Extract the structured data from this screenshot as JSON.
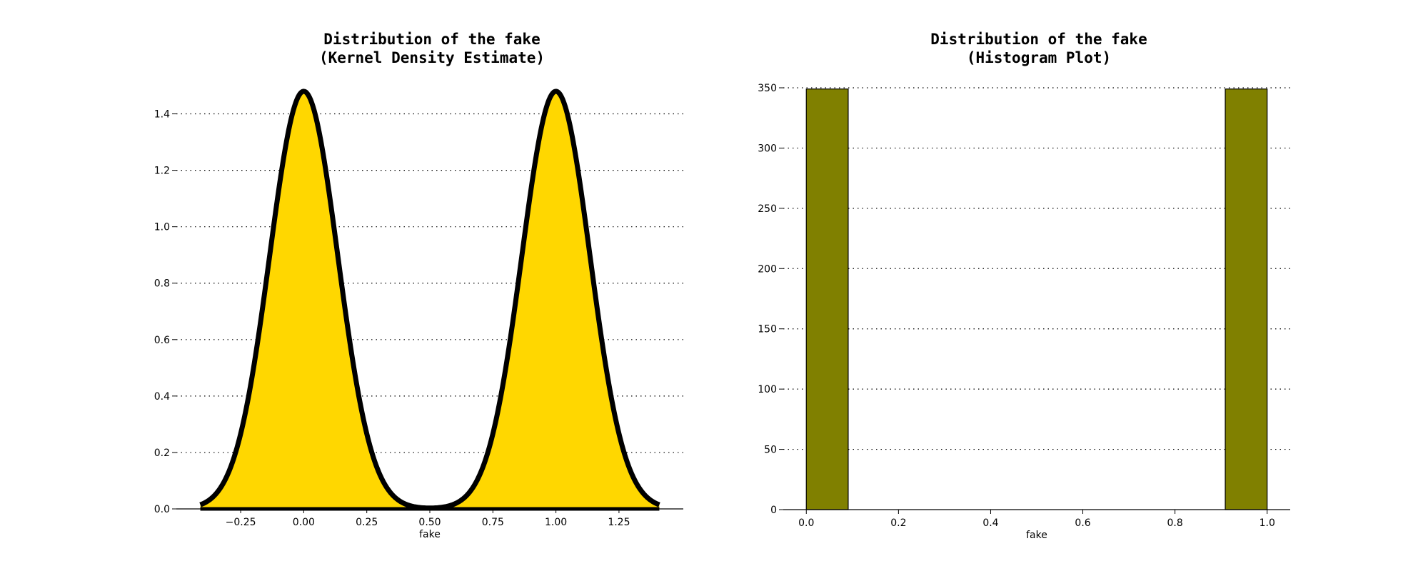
{
  "chart_data": [
    {
      "type": "area",
      "title": "Distribution of the fake",
      "subtitle": "(Kernel Density Estimate)",
      "xlabel": "fake",
      "ylabel": "",
      "xlim": [
        -0.505,
        1.505
      ],
      "ylim": [
        0,
        1.5
      ],
      "xticks": [
        -0.25,
        0.0,
        0.25,
        0.5,
        0.75,
        1.0,
        1.25
      ],
      "xtick_labels": [
        "−0.25",
        "0.00",
        "0.25",
        "0.50",
        "0.75",
        "1.00",
        "1.25"
      ],
      "yticks": [
        0.0,
        0.2,
        0.4,
        0.6,
        0.8,
        1.0,
        1.2,
        1.4
      ],
      "ytick_labels": [
        "0.0",
        "0.2",
        "0.4",
        "0.6",
        "0.8",
        "1.0",
        "1.2",
        "1.4"
      ],
      "grid": "y-dotted",
      "fill_color": "#FFD700",
      "line_color": "#000000",
      "x_range": [
        -0.41,
        1.41
      ],
      "peaks": [
        {
          "x": 0.0,
          "density": 1.48
        },
        {
          "x": 1.0,
          "density": 1.48
        }
      ],
      "bandwidth": 0.135,
      "min_between_peaks": {
        "x": 0.5,
        "density": 0.006
      }
    },
    {
      "type": "bar",
      "title": "Distribution of the fake",
      "subtitle": "(Histogram Plot)",
      "xlabel": "fake",
      "ylabel": "",
      "xlim": [
        -0.05,
        1.05
      ],
      "ylim": [
        0,
        350
      ],
      "xticks": [
        0.0,
        0.2,
        0.4,
        0.6,
        0.8,
        1.0
      ],
      "xtick_labels": [
        "0.0",
        "0.2",
        "0.4",
        "0.6",
        "0.8",
        "1.0"
      ],
      "yticks": [
        0,
        50,
        100,
        150,
        200,
        250,
        300,
        350
      ],
      "ytick_labels": [
        "0",
        "50",
        "100",
        "150",
        "200",
        "250",
        "300",
        "350"
      ],
      "grid": "y-dotted",
      "bar_color": "#808000",
      "bins": [
        {
          "start": 0.0,
          "end": 0.0909,
          "count": 349
        },
        {
          "start": 0.9091,
          "end": 1.0,
          "count": 349
        }
      ]
    }
  ]
}
